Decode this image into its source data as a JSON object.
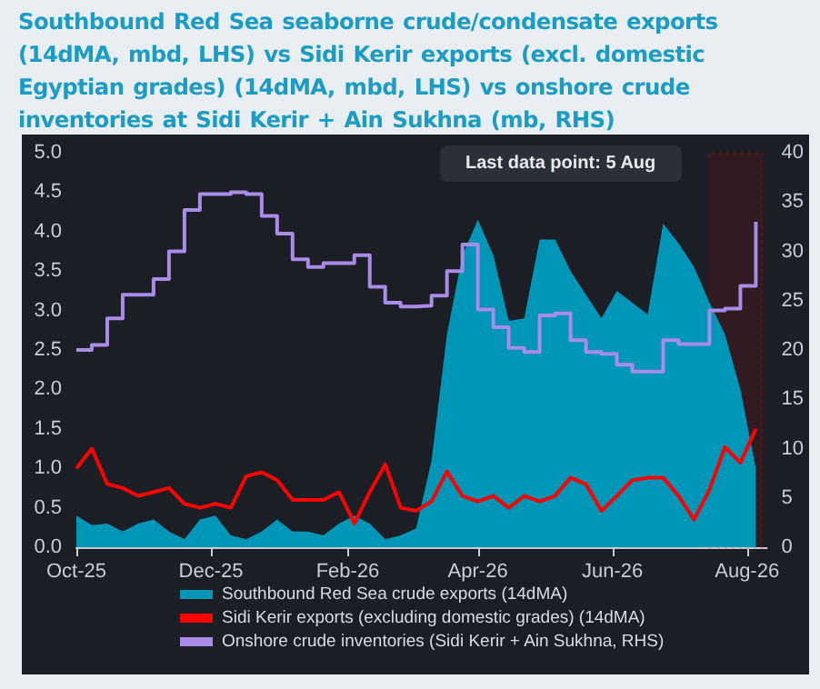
{
  "chart_data": {
    "type": "area",
    "title": "Southbound Red Sea seaborne crude/condensate exports (14dMA, mbd, LHS) vs Sidi Kerir exports (excl. domestic Egyptian grades) (14dMA, mbd, LHS) vs onshore crude inventories at Sidi Kerir + Ain Sukhna (mb, RHS)",
    "x": [
      "2025-10-01",
      "2025-10-08",
      "2025-10-15",
      "2025-10-22",
      "2025-10-29",
      "2025-11-05",
      "2025-11-12",
      "2025-11-19",
      "2025-11-26",
      "2025-12-03",
      "2025-12-10",
      "2025-12-17",
      "2025-12-24",
      "2025-12-31",
      "2026-01-07",
      "2026-01-14",
      "2026-01-21",
      "2026-01-28",
      "2026-02-04",
      "2026-02-11",
      "2026-02-18",
      "2026-02-25",
      "2026-03-04",
      "2026-03-11",
      "2026-03-18",
      "2026-03-25",
      "2026-04-01",
      "2026-04-08",
      "2026-04-15",
      "2026-04-22",
      "2026-04-29",
      "2026-05-06",
      "2026-05-13",
      "2026-05-20",
      "2026-05-27",
      "2026-06-03",
      "2026-06-10",
      "2026-06-17",
      "2026-06-24",
      "2026-07-01",
      "2026-07-08",
      "2026-07-15",
      "2026-07-22",
      "2026-07-29",
      "2026-08-05"
    ],
    "series": [
      {
        "name": "Southbound Red Sea crude exports (14dMA)",
        "color": "#0096b8",
        "values": [
          0.4,
          0.28,
          0.3,
          0.2,
          0.3,
          0.35,
          0.2,
          0.1,
          0.35,
          0.4,
          0.15,
          0.1,
          0.2,
          0.35,
          0.2,
          0.2,
          0.15,
          0.3,
          0.4,
          0.3,
          0.1,
          0.15,
          0.24,
          1.1,
          2.7,
          3.7,
          4.15,
          3.7,
          2.87,
          2.9,
          3.9,
          3.9,
          3.5,
          3.2,
          2.9,
          3.25,
          3.1,
          2.95,
          4.1,
          3.85,
          3.55,
          3.1,
          2.7,
          2.0,
          1.0
        ]
      },
      {
        "name": "Sidi Kerir exports (excluding domestic grades) (14dMA)",
        "type": "line",
        "color": "#ff0000",
        "values": [
          1.0,
          1.25,
          0.8,
          0.75,
          0.65,
          0.7,
          0.75,
          0.55,
          0.5,
          0.55,
          0.5,
          0.9,
          0.95,
          0.85,
          0.6,
          0.6,
          0.6,
          0.7,
          0.3,
          0.7,
          1.05,
          0.5,
          0.46,
          0.58,
          0.96,
          0.65,
          0.58,
          0.65,
          0.5,
          0.65,
          0.58,
          0.65,
          0.88,
          0.8,
          0.46,
          0.65,
          0.85,
          0.88,
          0.88,
          0.65,
          0.35,
          0.73,
          1.27,
          1.07,
          1.5
        ]
      },
      {
        "name": "Onshore crude inventories (Sidi Kerir + Ain Sukhna, RHS)",
        "type": "step",
        "axis": "y2",
        "color": "#a98be8",
        "values": [
          20,
          20.5,
          23.2,
          25.6,
          25.6,
          27.2,
          30,
          34.2,
          35.8,
          35.8,
          36,
          35.8,
          33.6,
          31.8,
          29.2,
          28.4,
          28.8,
          28.8,
          29.6,
          26.4,
          24.8,
          24.4,
          24.5,
          25.5,
          28,
          30.7,
          24.1,
          22.3,
          20.2,
          19.8,
          23.5,
          23.7,
          21,
          19.8,
          19.6,
          18.5,
          17.8,
          17.8,
          21,
          20.6,
          20.6,
          24,
          24.2,
          26.5,
          33
        ]
      }
    ],
    "xlim": [
      "2025-10-01",
      "2026-08-10"
    ],
    "xticks": [
      {
        "value": "2025-10-01",
        "label": "Oct-25"
      },
      {
        "value": "2025-12-01",
        "label": "Dec-25"
      },
      {
        "value": "2026-02-01",
        "label": "Feb-26"
      },
      {
        "value": "2026-04-01",
        "label": "Apr-26"
      },
      {
        "value": "2026-06-01",
        "label": "Jun-26"
      },
      {
        "value": "2026-08-01",
        "label": "Aug-26"
      }
    ],
    "ylim": [
      0,
      5
    ],
    "yticks": [
      {
        "value": 0,
        "label": "0.0"
      },
      {
        "value": 0.5,
        "label": "0.5"
      },
      {
        "value": 1,
        "label": "1.0"
      },
      {
        "value": 1.5,
        "label": "1.5"
      },
      {
        "value": 2,
        "label": "2.0"
      },
      {
        "value": 2.5,
        "label": "2.5"
      },
      {
        "value": 3,
        "label": "3.0"
      },
      {
        "value": 3.5,
        "label": "3.5"
      },
      {
        "value": 4,
        "label": "4.0"
      },
      {
        "value": 4.5,
        "label": "4.5"
      },
      {
        "value": 5,
        "label": "5.0"
      }
    ],
    "y2lim": [
      0,
      40
    ],
    "y2ticks": [
      0,
      5,
      10,
      15,
      20,
      25,
      30,
      35,
      40
    ],
    "bands": [
      {
        "axis": "x",
        "from": "2026-07-15",
        "to": "2026-08-08",
        "color": "#ff0000"
      }
    ],
    "annotations": [
      "Last data point: 5 Aug"
    ],
    "legend": "bottom",
    "grid": false,
    "marker": "none"
  }
}
